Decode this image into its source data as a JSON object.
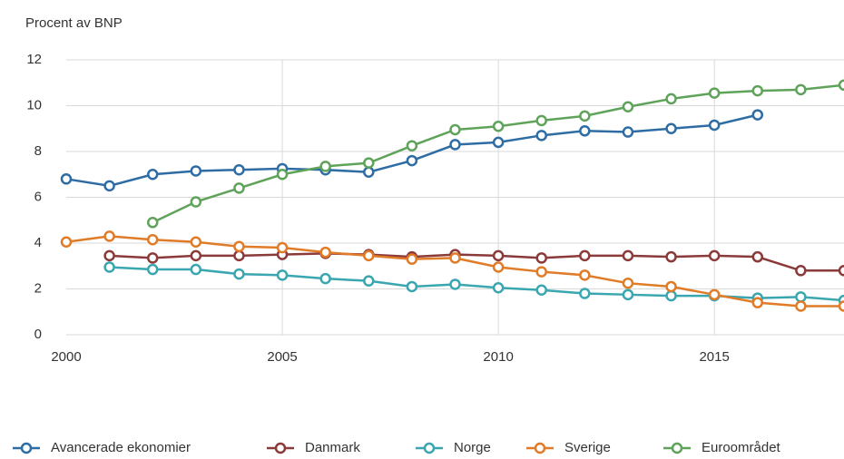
{
  "chart_data": {
    "type": "line",
    "y_label": "Procent av BNP",
    "x": [
      2000,
      2001,
      2002,
      2003,
      2004,
      2005,
      2006,
      2007,
      2008,
      2009,
      2010,
      2011,
      2012,
      2013,
      2014,
      2015,
      2016,
      2017,
      2018
    ],
    "series": [
      {
        "name": "Avancerade ekonomier",
        "color": "#2e6da4",
        "values": [
          6.8,
          6.5,
          7.0,
          7.15,
          7.2,
          7.25,
          7.2,
          7.1,
          7.6,
          8.3,
          8.4,
          8.7,
          8.9,
          8.85,
          9.0,
          9.15,
          9.6,
          null,
          null
        ]
      },
      {
        "name": "Danmark",
        "color": "#8b3a3a",
        "values": [
          null,
          3.45,
          3.35,
          3.45,
          3.45,
          3.5,
          3.55,
          3.5,
          3.4,
          3.5,
          3.45,
          3.35,
          3.45,
          3.45,
          3.4,
          3.45,
          3.4,
          2.8,
          2.8
        ]
      },
      {
        "name": "Norge",
        "color": "#3aa6b0",
        "values": [
          null,
          2.95,
          2.85,
          2.85,
          2.65,
          2.6,
          2.45,
          2.35,
          2.1,
          2.2,
          2.05,
          1.95,
          1.8,
          1.75,
          1.7,
          1.7,
          1.6,
          1.65,
          1.5
        ]
      },
      {
        "name": "Sverige",
        "color": "#e07b28",
        "values": [
          4.05,
          4.3,
          4.15,
          4.05,
          3.85,
          3.8,
          3.6,
          3.45,
          3.3,
          3.35,
          2.95,
          2.75,
          2.6,
          2.25,
          2.1,
          1.75,
          1.4,
          1.25,
          1.25
        ]
      },
      {
        "name": "Euroområdet",
        "color": "#5fa35a",
        "values": [
          null,
          null,
          4.9,
          5.8,
          6.4,
          7.0,
          7.35,
          7.5,
          8.25,
          8.95,
          9.1,
          9.35,
          9.55,
          9.95,
          10.3,
          10.55,
          10.65,
          10.7,
          10.9
        ]
      }
    ],
    "xlim": [
      2000,
      2018
    ],
    "xticks": [
      2000,
      2005,
      2010,
      2015
    ],
    "ylim": [
      0,
      12
    ],
    "yticks": [
      0,
      2,
      4,
      6,
      8,
      10,
      12
    ],
    "grid": true,
    "legend": "bottom"
  }
}
